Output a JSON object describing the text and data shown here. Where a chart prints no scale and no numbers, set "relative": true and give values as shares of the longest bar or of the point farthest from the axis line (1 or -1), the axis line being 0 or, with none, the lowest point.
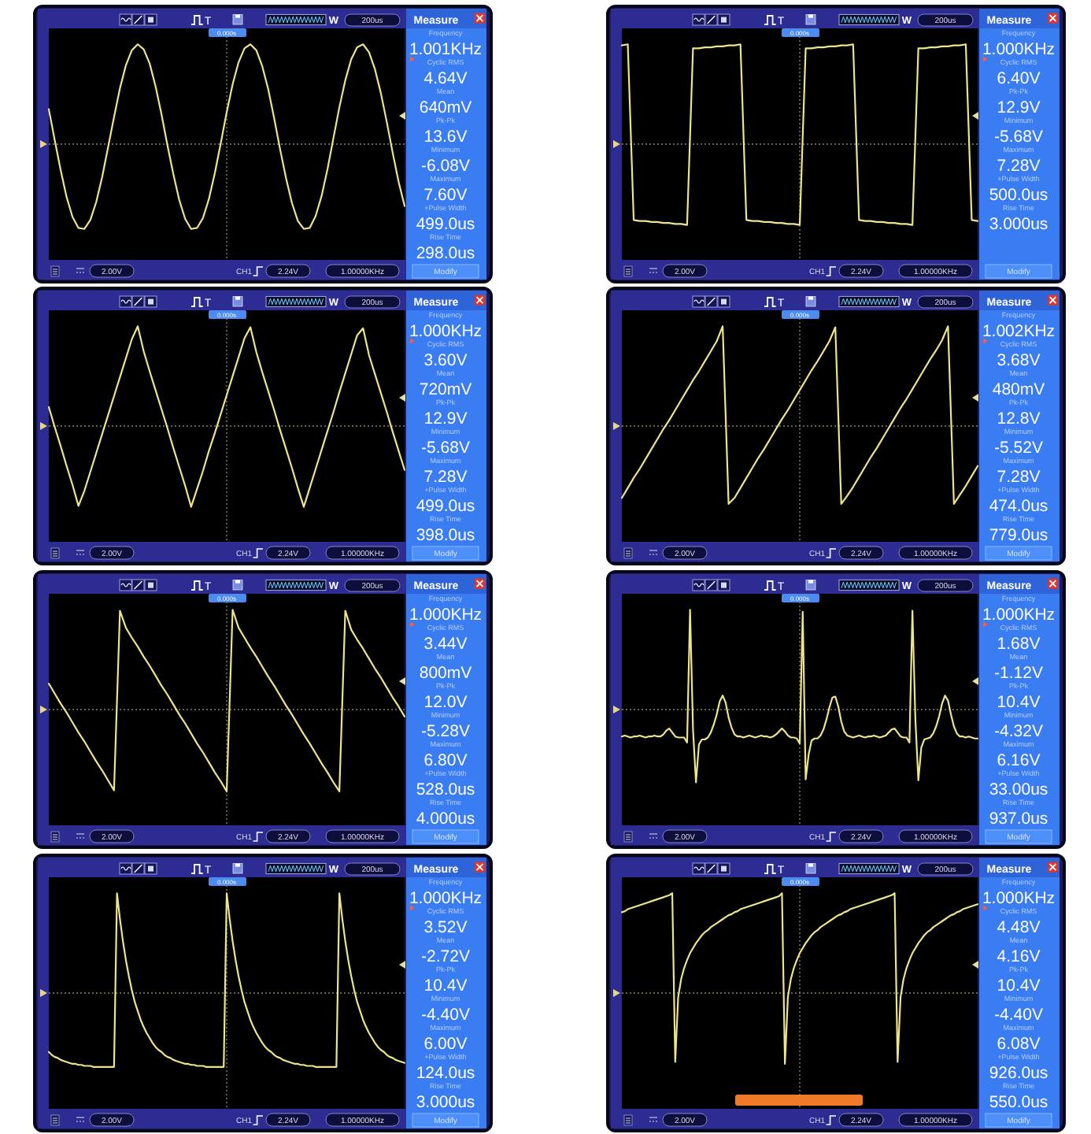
{
  "chart_data": [
    {
      "type": "line",
      "relative": true,
      "color": "#eee48a",
      "categories": [
        null,
        null,
        null,
        null,
        null,
        null,
        null,
        null,
        null,
        null,
        null,
        null,
        null,
        null,
        null,
        null,
        null,
        null,
        null,
        null,
        null,
        null,
        null,
        null,
        null,
        null,
        null,
        null,
        null,
        null,
        null,
        null,
        null,
        null,
        null,
        null,
        null,
        null,
        null,
        null,
        null,
        null,
        null,
        null,
        null,
        null,
        null,
        null,
        null,
        null,
        null,
        null,
        null,
        null,
        null,
        null,
        null,
        null,
        null,
        null,
        null
      ],
      "values": [
        0.35,
        0.04,
        -0.26,
        -0.53,
        -0.73,
        -0.84,
        -0.85,
        -0.76,
        -0.58,
        -0.33,
        -0.03,
        0.27,
        0.56,
        0.79,
        0.94,
        1.0,
        0.95,
        0.81,
        0.58,
        0.3,
        -0.01,
        -0.3,
        -0.56,
        -0.75,
        -0.85,
        -0.84,
        -0.74,
        -0.55,
        -0.29,
        0.01,
        0.32,
        0.6,
        0.82,
        0.96,
        1.0,
        0.94,
        0.78,
        0.55,
        0.26,
        -0.05,
        -0.34,
        -0.59,
        -0.77,
        -0.85,
        -0.84,
        -0.72,
        -0.52,
        -0.25,
        0.06,
        0.37,
        0.64,
        0.85,
        0.97,
        1.0,
        0.92,
        0.75,
        0.51,
        0.22,
        -0.09,
        -0.38,
        -0.62
      ],
      "annotations": [
        "Measure",
        "Modify",
        "T",
        "W",
        "200us",
        "0.000s",
        "2.00V",
        "CH1",
        "2.24V",
        "1.00000KHz",
        "Frequency",
        "1.001KHz",
        "Cyclic RMS",
        "4.64V",
        "Mean",
        "640mV",
        "Pk-Pk",
        "13.6V",
        "Minimum",
        "-6.08V",
        "Maximum",
        "7.60V",
        "+Pulse Width",
        "499.0us",
        "Rise Time",
        "298.0us"
      ]
    },
    {
      "type": "line",
      "relative": true,
      "color": "#eee48a",
      "categories": [
        null,
        null,
        null,
        null,
        null,
        null,
        null,
        null,
        null,
        null,
        null,
        null,
        null,
        null,
        null,
        null,
        null,
        null,
        null,
        null,
        null,
        null,
        null,
        null,
        null,
        null,
        null,
        null,
        null,
        null,
        null,
        null,
        null,
        null,
        null,
        null,
        null,
        null,
        null,
        null,
        null,
        null,
        null,
        null,
        null,
        null,
        null,
        null,
        null,
        null,
        null,
        null,
        null,
        null,
        null,
        null,
        null,
        null,
        null,
        null,
        null
      ],
      "values": [
        0.99,
        1.0,
        -0.76,
        -0.77,
        -0.77,
        -0.78,
        -0.78,
        -0.79,
        -0.79,
        -0.8,
        -0.8,
        -0.81,
        0.96,
        0.96,
        0.97,
        0.97,
        0.98,
        0.98,
        0.99,
        0.99,
        1.0,
        -0.76,
        -0.77,
        -0.77,
        -0.78,
        -0.78,
        -0.79,
        -0.79,
        -0.8,
        -0.8,
        -0.81,
        0.96,
        0.96,
        0.97,
        0.97,
        0.98,
        0.98,
        0.99,
        0.99,
        1.0,
        -0.76,
        -0.77,
        -0.77,
        -0.78,
        -0.78,
        -0.79,
        -0.79,
        -0.8,
        -0.8,
        -0.81,
        0.96,
        0.96,
        0.97,
        0.97,
        0.98,
        0.98,
        0.99,
        0.99,
        1.0,
        -0.76,
        -0.77
      ],
      "annotations": [
        "Measure",
        "Modify",
        "T",
        "W",
        "200us",
        "0.000s",
        "2.00V",
        "CH1",
        "2.24V",
        "1.00000KHz",
        "Frequency",
        "1.000KHz",
        "Cyclic RMS",
        "6.40V",
        "Pk-Pk",
        "12.9V",
        "Minimum",
        "-5.68V",
        "Maximum",
        "7.28V",
        "+Pulse Width",
        "500.0us",
        "Rise Time",
        "3.000us"
      ]
    },
    {
      "type": "line",
      "relative": true,
      "color": "#eee48a",
      "categories": [
        null,
        null,
        null,
        null,
        null,
        null,
        null,
        null,
        null,
        null,
        null,
        null,
        null,
        null,
        null,
        null,
        null,
        null,
        null,
        null,
        null,
        null,
        null,
        null,
        null,
        null,
        null,
        null,
        null,
        null,
        null,
        null,
        null,
        null,
        null,
        null,
        null,
        null,
        null,
        null,
        null,
        null,
        null,
        null,
        null,
        null,
        null,
        null,
        null,
        null,
        null,
        null,
        null,
        null,
        null,
        null,
        null,
        null,
        null,
        null,
        null
      ],
      "values": [
        0.19,
        -0.01,
        -0.2,
        -0.4,
        -0.59,
        -0.8,
        -0.65,
        -0.46,
        -0.27,
        -0.08,
        0.11,
        0.3,
        0.49,
        0.68,
        0.87,
        1.0,
        0.75,
        0.55,
        0.36,
        0.17,
        -0.02,
        -0.22,
        -0.41,
        -0.6,
        -0.81,
        -0.63,
        -0.45,
        -0.25,
        -0.07,
        0.12,
        0.31,
        0.5,
        0.69,
        0.88,
        0.99,
        0.74,
        0.54,
        0.35,
        0.16,
        -0.04,
        -0.23,
        -0.42,
        -0.62,
        -0.81,
        -0.62,
        -0.43,
        -0.24,
        -0.05,
        0.14,
        0.34,
        0.53,
        0.72,
        0.91,
        0.98,
        0.71,
        0.52,
        0.33,
        0.14,
        -0.06,
        -0.25,
        -0.44
      ],
      "annotations": [
        "Measure",
        "Modify",
        "T",
        "W",
        "200us",
        "0.000s",
        "2.00V",
        "CH1",
        "2.24V",
        "1.00000KHz",
        "Frequency",
        "1.000KHz",
        "Cyclic RMS",
        "3.60V",
        "Mean",
        "720mV",
        "Pk-Pk",
        "12.9V",
        "Minimum",
        "-5.68V",
        "Maximum",
        "7.28V",
        "+Pulse Width",
        "499.0us",
        "Rise Time",
        "398.0us"
      ]
    },
    {
      "type": "line",
      "relative": true,
      "color": "#eee48a",
      "categories": [
        null,
        null,
        null,
        null,
        null,
        null,
        null,
        null,
        null,
        null,
        null,
        null,
        null,
        null,
        null,
        null,
        null,
        null,
        null,
        null,
        null,
        null,
        null,
        null,
        null,
        null,
        null,
        null,
        null,
        null,
        null,
        null,
        null,
        null,
        null,
        null,
        null,
        null,
        null,
        null,
        null,
        null,
        null,
        null,
        null,
        null,
        null,
        null,
        null,
        null,
        null,
        null,
        null,
        null,
        null,
        null,
        null,
        null,
        null,
        null,
        null
      ],
      "values": [
        -0.72,
        -0.62,
        -0.52,
        -0.43,
        -0.33,
        -0.23,
        -0.13,
        -0.03,
        0.06,
        0.16,
        0.26,
        0.36,
        0.46,
        0.55,
        0.65,
        0.75,
        0.85,
        1.0,
        -0.78,
        -0.72,
        -0.62,
        -0.52,
        -0.42,
        -0.32,
        -0.23,
        -0.13,
        -0.03,
        0.07,
        0.16,
        0.26,
        0.36,
        0.46,
        0.56,
        0.65,
        0.75,
        0.85,
        0.99,
        -0.78,
        -0.7,
        -0.61,
        -0.51,
        -0.41,
        -0.31,
        -0.22,
        -0.12,
        -0.02,
        0.08,
        0.18,
        0.27,
        0.37,
        0.47,
        0.57,
        0.67,
        0.76,
        0.86,
        1.0,
        -0.78,
        -0.69,
        -0.6,
        -0.5,
        -0.4
      ],
      "annotations": [
        "Measure",
        "Modify",
        "T",
        "W",
        "200us",
        "0.000s",
        "2.00V",
        "CH1",
        "2.24V",
        "1.00000KHz",
        "Frequency",
        "1.002KHz",
        "Cyclic RMS",
        "3.68V",
        "Mean",
        "480mV",
        "Pk-Pk",
        "12.8V",
        "Minimum",
        "-5.52V",
        "Maximum",
        "7.28V",
        "+Pulse Width",
        "474.0us",
        "Rise Time",
        "779.0us"
      ]
    },
    {
      "type": "line",
      "relative": true,
      "color": "#eee48a",
      "categories": [
        null,
        null,
        null,
        null,
        null,
        null,
        null,
        null,
        null,
        null,
        null,
        null,
        null,
        null,
        null,
        null,
        null,
        null,
        null,
        null,
        null,
        null,
        null,
        null,
        null,
        null,
        null,
        null,
        null,
        null,
        null,
        null,
        null,
        null,
        null,
        null,
        null,
        null,
        null,
        null,
        null,
        null,
        null,
        null,
        null,
        null,
        null,
        null,
        null,
        null,
        null,
        null,
        null,
        null,
        null,
        null,
        null,
        null,
        null,
        null,
        null
      ],
      "values": [
        0.26,
        0.16,
        0.06,
        -0.03,
        -0.13,
        -0.23,
        -0.32,
        -0.42,
        -0.52,
        -0.61,
        -0.71,
        -0.81,
        0.99,
        0.82,
        0.72,
        0.63,
        0.53,
        0.44,
        0.34,
        0.24,
        0.15,
        0.05,
        -0.05,
        -0.14,
        -0.24,
        -0.34,
        -0.43,
        -0.53,
        -0.63,
        -0.72,
        -0.82,
        1.0,
        0.82,
        0.72,
        0.62,
        0.53,
        0.43,
        0.33,
        0.24,
        0.14,
        0.04,
        -0.05,
        -0.15,
        -0.25,
        -0.34,
        -0.44,
        -0.54,
        -0.63,
        -0.73,
        -0.82,
        0.99,
        0.8,
        0.7,
        0.61,
        0.51,
        0.41,
        0.32,
        0.22,
        0.12,
        0.03,
        -0.07
      ],
      "annotations": [
        "Measure",
        "Modify",
        "T",
        "W",
        "200us",
        "0.000s",
        "2.00V",
        "CH1",
        "2.24V",
        "1.00000KHz",
        "Frequency",
        "1.000KHz",
        "Cyclic RMS",
        "3.44V",
        "Mean",
        "800mV",
        "Pk-Pk",
        "12.0V",
        "Minimum",
        "-5.28V",
        "Maximum",
        "6.80V",
        "+Pulse Width",
        "528.0us",
        "Rise Time",
        "4.000us"
      ]
    },
    {
      "type": "line",
      "relative": true,
      "color": "#eee48a",
      "categories": [
        null,
        null,
        null,
        null,
        null,
        null,
        null,
        null,
        null,
        null,
        null,
        null,
        null,
        null,
        null,
        null,
        null,
        null,
        null,
        null,
        null,
        null,
        null,
        null,
        null,
        null,
        null,
        null,
        null,
        null,
        null,
        null,
        null,
        null,
        null,
        null,
        null,
        null,
        null,
        null,
        null,
        null,
        null,
        null,
        null,
        null,
        null,
        null,
        null,
        null,
        null,
        null,
        null,
        null,
        null,
        null,
        null,
        null,
        null,
        null,
        null,
        null,
        null,
        null,
        null,
        null,
        null,
        null,
        null,
        null,
        null,
        null,
        null,
        null,
        null,
        null,
        null,
        null,
        null,
        null,
        null,
        null,
        null,
        null,
        null,
        null,
        null,
        null,
        null,
        null,
        null,
        null,
        null,
        null,
        null,
        null,
        null,
        null,
        null,
        null,
        null,
        null,
        null,
        null,
        null,
        null,
        null,
        null,
        null,
        null,
        null,
        null,
        null,
        null,
        null,
        null,
        null,
        null,
        null,
        null,
        null
      ],
      "values": [
        -0.27,
        -0.26,
        -0.27,
        -0.28,
        -0.27,
        -0.27,
        -0.26,
        -0.27,
        -0.28,
        -0.27,
        -0.27,
        -0.26,
        -0.27,
        -0.27,
        -0.25,
        -0.21,
        -0.19,
        -0.23,
        -0.27,
        -0.28,
        -0.28,
        -0.28,
        -0.33,
        1.0,
        -0.2,
        -0.73,
        -0.35,
        -0.3,
        -0.3,
        -0.28,
        -0.23,
        -0.15,
        -0.05,
        0.08,
        0.14,
        0.07,
        -0.08,
        -0.18,
        -0.25,
        -0.27,
        -0.27,
        -0.28,
        -0.27,
        -0.26,
        -0.27,
        -0.28,
        -0.27,
        -0.26,
        -0.27,
        -0.27,
        -0.28,
        -0.27,
        -0.25,
        -0.22,
        -0.19,
        -0.22,
        -0.26,
        -0.28,
        -0.28,
        -0.29,
        -0.34,
        0.98,
        -0.7,
        -0.45,
        -0.31,
        -0.29,
        -0.29,
        -0.26,
        -0.2,
        -0.1,
        0.02,
        0.12,
        0.13,
        0.03,
        -0.12,
        -0.22,
        -0.26,
        -0.27,
        -0.28,
        -0.27,
        -0.26,
        -0.27,
        -0.28,
        -0.27,
        -0.27,
        -0.26,
        -0.27,
        -0.28,
        -0.27,
        -0.26,
        -0.23,
        -0.2,
        -0.19,
        -0.23,
        -0.27,
        -0.28,
        -0.28,
        -0.33,
        0.99,
        -0.1,
        -0.71,
        -0.38,
        -0.3,
        -0.29,
        -0.28,
        -0.24,
        -0.17,
        -0.07,
        0.06,
        0.14,
        0.09,
        -0.05,
        -0.17,
        -0.24,
        -0.27,
        -0.27,
        -0.28,
        -0.27,
        -0.28,
        -0.29,
        -0.29
      ],
      "annotations": [
        "Measure",
        "Modify",
        "T",
        "W",
        "200us",
        "0.000s",
        "2.00V",
        "CH1",
        "2.24V",
        "1.00000KHz",
        "Frequency",
        "1.000KHz",
        "Cyclic RMS",
        "1.68V",
        "Mean",
        "-1.12V",
        "Pk-Pk",
        "10.4V",
        "Minimum",
        "-4.32V",
        "Maximum",
        "6.16V",
        "+Pulse Width",
        "33.00us",
        "Rise Time",
        "937.0us"
      ]
    },
    {
      "type": "line",
      "relative": true,
      "color": "#eee48a",
      "categories": [
        null,
        null,
        null,
        null,
        null,
        null,
        null,
        null,
        null,
        null,
        null,
        null,
        null,
        null,
        null,
        null,
        null,
        null,
        null,
        null,
        null,
        null,
        null,
        null,
        null,
        null,
        null,
        null,
        null,
        null,
        null,
        null,
        null,
        null,
        null,
        null,
        null,
        null,
        null,
        null,
        null,
        null,
        null,
        null,
        null,
        null,
        null,
        null,
        null,
        null,
        null,
        null,
        null,
        null,
        null,
        null,
        null,
        null,
        null,
        null,
        null,
        null,
        null,
        null,
        null,
        null,
        null,
        null,
        null,
        null,
        null,
        null,
        null,
        null,
        null,
        null,
        null,
        null,
        null,
        null,
        null,
        null,
        null,
        null,
        null,
        null,
        null,
        null,
        null,
        null,
        null,
        null,
        null,
        null,
        null,
        null,
        null,
        null,
        null,
        null,
        null,
        null,
        null,
        null,
        null,
        null,
        null,
        null,
        null,
        null,
        null,
        null,
        null,
        null,
        null,
        null,
        null,
        null,
        null,
        null,
        null
      ],
      "values": [
        -0.59,
        -0.62,
        -0.64,
        -0.65,
        -0.67,
        -0.68,
        -0.69,
        -0.7,
        -0.71,
        -0.71,
        -0.72,
        -0.72,
        -0.73,
        -0.73,
        -0.73,
        -0.74,
        -0.74,
        -0.74,
        -0.74,
        -0.74,
        -0.74,
        -0.74,
        -0.74,
        1.0,
        0.74,
        0.52,
        0.33,
        0.17,
        0.03,
        -0.09,
        -0.18,
        -0.27,
        -0.34,
        -0.4,
        -0.45,
        -0.5,
        -0.54,
        -0.57,
        -0.59,
        -0.62,
        -0.64,
        -0.65,
        -0.67,
        -0.68,
        -0.69,
        -0.7,
        -0.71,
        -0.71,
        -0.72,
        -0.72,
        -0.73,
        -0.73,
        -0.73,
        -0.74,
        -0.74,
        -0.74,
        -0.74,
        -0.74,
        -0.74,
        -0.74,
        1.0,
        0.74,
        0.52,
        0.33,
        0.17,
        0.03,
        -0.09,
        -0.18,
        -0.27,
        -0.34,
        -0.4,
        -0.45,
        -0.5,
        -0.54,
        -0.57,
        -0.59,
        -0.62,
        -0.64,
        -0.65,
        -0.67,
        -0.68,
        -0.69,
        -0.7,
        -0.71,
        -0.71,
        -0.72,
        -0.72,
        -0.73,
        -0.73,
        -0.73,
        -0.74,
        -0.74,
        -0.74,
        -0.74,
        -0.74,
        -0.74,
        -0.74,
        -0.74,
        1.0,
        0.74,
        0.52,
        0.33,
        0.17,
        0.03,
        -0.09,
        -0.18,
        -0.27,
        -0.34,
        -0.4,
        -0.45,
        -0.5,
        -0.54,
        -0.57,
        -0.59,
        -0.62,
        -0.64,
        -0.65,
        -0.67,
        -0.68,
        -0.69,
        -0.7
      ],
      "annotations": [
        "Measure",
        "Modify",
        "T",
        "W",
        "200us",
        "0.000s",
        "2.00V",
        "CH1",
        "2.24V",
        "1.00000KHz",
        "Frequency",
        "1.000KHz",
        "Cyclic RMS",
        "3.52V",
        "Mean",
        "-2.72V",
        "Pk-Pk",
        "10.4V",
        "Minimum",
        "-4.40V",
        "Maximum",
        "6.00V",
        "+Pulse Width",
        "124.0us",
        "Rise Time",
        "3.000us"
      ]
    },
    {
      "type": "line",
      "relative": true,
      "color": "#eee48a",
      "categories": [
        null,
        null,
        null,
        null,
        null,
        null,
        null,
        null,
        null,
        null,
        null,
        null,
        null,
        null,
        null,
        null,
        null,
        null,
        null,
        null,
        null,
        null,
        null,
        null,
        null,
        null,
        null,
        null,
        null,
        null,
        null,
        null,
        null,
        null,
        null,
        null,
        null,
        null,
        null,
        null,
        null,
        null,
        null,
        null,
        null,
        null,
        null,
        null,
        null,
        null,
        null,
        null,
        null,
        null,
        null,
        null,
        null,
        null,
        null,
        null,
        null,
        null,
        null,
        null,
        null,
        null,
        null,
        null,
        null,
        null,
        null,
        null,
        null,
        null,
        null,
        null,
        null,
        null,
        null,
        null,
        null,
        null,
        null,
        null,
        null,
        null,
        null,
        null,
        null,
        null,
        null,
        null,
        null,
        null,
        null,
        null,
        null,
        null,
        null,
        null,
        null,
        null,
        null,
        null,
        null,
        null,
        null,
        null,
        null,
        null,
        null,
        null,
        null,
        null,
        null,
        null,
        null,
        null,
        null,
        null,
        null
      ],
      "values": [
        0.81,
        0.82,
        0.84,
        0.85,
        0.86,
        0.87,
        0.88,
        0.89,
        0.9,
        0.91,
        0.92,
        0.93,
        0.94,
        0.95,
        0.96,
        0.97,
        0.98,
        1.0,
        -0.69,
        -0.04,
        0.14,
        0.25,
        0.33,
        0.4,
        0.45,
        0.5,
        0.54,
        0.58,
        0.61,
        0.63,
        0.66,
        0.68,
        0.7,
        0.72,
        0.74,
        0.76,
        0.78,
        0.79,
        0.81,
        0.82,
        0.84,
        0.85,
        0.86,
        0.87,
        0.88,
        0.89,
        0.9,
        0.91,
        0.92,
        0.93,
        0.94,
        0.95,
        0.96,
        0.97,
        1.0,
        -0.71,
        -0.04,
        0.14,
        0.25,
        0.33,
        0.4,
        0.45,
        0.5,
        0.54,
        0.58,
        0.61,
        0.63,
        0.66,
        0.68,
        0.7,
        0.72,
        0.74,
        0.76,
        0.78,
        0.79,
        0.81,
        0.82,
        0.84,
        0.85,
        0.86,
        0.87,
        0.88,
        0.89,
        0.9,
        0.91,
        0.92,
        0.93,
        0.94,
        0.95,
        0.96,
        0.97,
        0.98,
        1.0,
        -0.69,
        -0.04,
        0.14,
        0.25,
        0.33,
        0.4,
        0.45,
        0.5,
        0.54,
        0.58,
        0.61,
        0.63,
        0.66,
        0.68,
        0.7,
        0.72,
        0.74,
        0.76,
        0.78,
        0.79,
        0.81,
        0.82,
        0.84,
        0.85,
        0.86,
        0.87,
        0.88,
        0.89
      ],
      "annotations": [
        "Measure",
        "Modify",
        "T",
        "W",
        "200us",
        "0.000s",
        "2.00V",
        "CH1",
        "2.24V",
        "1.00000KHz",
        "Frequency",
        "1.000KHz",
        "Cyclic RMS",
        "4.48V",
        "Mean",
        "4.16V",
        "Pk-Pk",
        "10.4V",
        "Minimum",
        "-4.40V",
        "Maximum",
        "6.08V",
        "+Pulse Width",
        "926.0us",
        "Rise Time",
        "550.0us"
      ]
    }
  ]
}
